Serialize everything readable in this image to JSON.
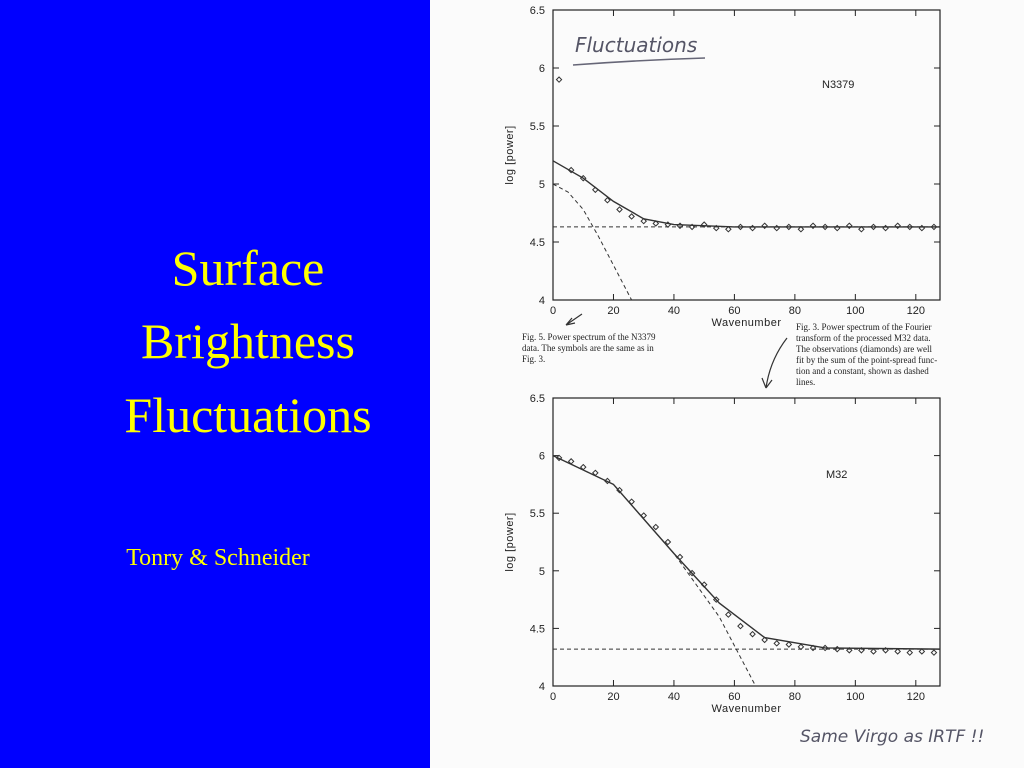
{
  "slide": {
    "title_lines": [
      "Surface",
      "Brightness",
      "Fluctuations"
    ],
    "author": "Tonry & Schneider",
    "handwritten_title": "Fluctuations",
    "handwritten_note": "Same Virgo as IRTF !!"
  },
  "chart_data": [
    {
      "type": "scatter",
      "label": "N3379",
      "xlabel": "Wavenumber",
      "ylabel": "log [power]",
      "caption_lines": [
        "Fig. 5. Power spectrum of the N3379",
        "data. The symbols are the same as in",
        "Fig. 3."
      ],
      "xlim": [
        0,
        128
      ],
      "ylim": [
        4,
        6.5
      ],
      "xticks": [
        0,
        20,
        40,
        60,
        80,
        100,
        120
      ],
      "yticks": [
        4,
        4.5,
        5,
        5.5,
        6,
        6.5
      ],
      "x": [
        2,
        6,
        10,
        14,
        18,
        22,
        26,
        30,
        34,
        38,
        42,
        46,
        50,
        54,
        58,
        62,
        66,
        70,
        74,
        78,
        82,
        86,
        90,
        94,
        98,
        102,
        106,
        110,
        114,
        118,
        122,
        126
      ],
      "series": [
        {
          "marker": "diamond",
          "color": "#333333",
          "values": [
            5.9,
            5.12,
            5.05,
            4.95,
            4.86,
            4.78,
            4.72,
            4.68,
            4.66,
            4.65,
            4.64,
            4.63,
            4.65,
            4.62,
            4.61,
            4.63,
            4.62,
            4.64,
            4.62,
            4.63,
            4.61,
            4.64,
            4.63,
            4.62,
            4.64,
            4.61,
            4.63,
            4.62,
            4.64,
            4.63,
            4.62,
            4.63
          ]
        }
      ],
      "fit": {
        "x": [
          0,
          10,
          20,
          30,
          40,
          60,
          128
        ],
        "values": [
          5.2,
          5.05,
          4.85,
          4.7,
          4.65,
          4.63,
          4.63
        ]
      },
      "psf": {
        "x": [
          0,
          5,
          10,
          15,
          20,
          26
        ],
        "values": [
          5.0,
          4.93,
          4.78,
          4.55,
          4.3,
          4.0
        ]
      },
      "constant": 4.63
    },
    {
      "type": "scatter",
      "label": "M32",
      "xlabel": "Wavenumber",
      "ylabel": "log [power]",
      "caption_lines": [
        "Fig. 3. Power spectrum of the Fourier",
        "transform of the processed M32 data.",
        "The observations (diamonds) are well",
        "fit by the sum of the point-spread func-",
        "tion and a constant, shown as dashed",
        "lines."
      ],
      "xlim": [
        0,
        128
      ],
      "ylim": [
        4,
        6.5
      ],
      "xticks": [
        0,
        20,
        40,
        60,
        80,
        100,
        120
      ],
      "yticks": [
        4,
        4.5,
        5,
        5.5,
        6,
        6.5
      ],
      "x": [
        2,
        6,
        10,
        14,
        18,
        22,
        26,
        30,
        34,
        38,
        42,
        46,
        50,
        54,
        58,
        62,
        66,
        70,
        74,
        78,
        82,
        86,
        90,
        94,
        98,
        102,
        106,
        110,
        114,
        118,
        122,
        126
      ],
      "series": [
        {
          "marker": "diamond",
          "color": "#333333",
          "values": [
            5.98,
            5.95,
            5.9,
            5.85,
            5.78,
            5.7,
            5.6,
            5.48,
            5.38,
            5.25,
            5.12,
            4.98,
            4.88,
            4.75,
            4.62,
            4.52,
            4.45,
            4.4,
            4.37,
            4.36,
            4.34,
            4.33,
            4.33,
            4.32,
            4.31,
            4.31,
            4.3,
            4.31,
            4.3,
            4.29,
            4.3,
            4.29
          ]
        }
      ],
      "fit": {
        "x": [
          0,
          20,
          40,
          55,
          70,
          90,
          128
        ],
        "values": [
          6.0,
          5.75,
          5.15,
          4.72,
          4.42,
          4.33,
          4.32
        ]
      },
      "psf": {
        "x": [
          0,
          20,
          40,
          55,
          67
        ],
        "values": [
          6.0,
          5.75,
          5.15,
          4.6,
          4.0
        ]
      },
      "constant": 4.32
    }
  ]
}
